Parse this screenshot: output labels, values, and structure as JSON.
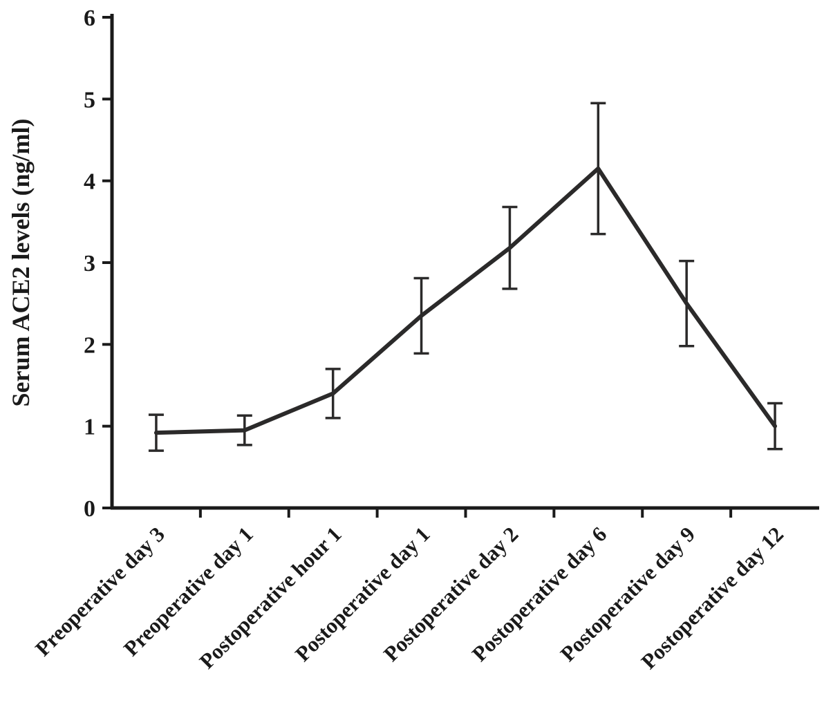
{
  "chart_data": {
    "type": "line",
    "title": "",
    "xlabel": "",
    "ylabel": "Serum ACE2 levels (ng/ml)",
    "ylim": [
      0,
      6
    ],
    "yticks": [
      0,
      1,
      2,
      3,
      4,
      5,
      6
    ],
    "categories": [
      "Preoperative day 3",
      "Preoperative day 1",
      "Postoperative hour 1",
      "Postoperative day 1",
      "Postoperative day 2",
      "Postoperative day 6",
      "Postoperative day 9",
      "Postoperative day 12"
    ],
    "series": [
      {
        "name": "Serum ACE2 levels",
        "values": [
          0.92,
          0.95,
          1.4,
          2.35,
          3.18,
          4.15,
          2.5,
          1.0
        ],
        "errors": [
          0.22,
          0.18,
          0.3,
          0.46,
          0.5,
          0.8,
          0.52,
          0.28
        ]
      }
    ],
    "grid": false,
    "legend": false,
    "line_color": "#2b2a2a",
    "axis_color": "#1a1a1a",
    "error_bar_color": "#2b2a2a"
  }
}
